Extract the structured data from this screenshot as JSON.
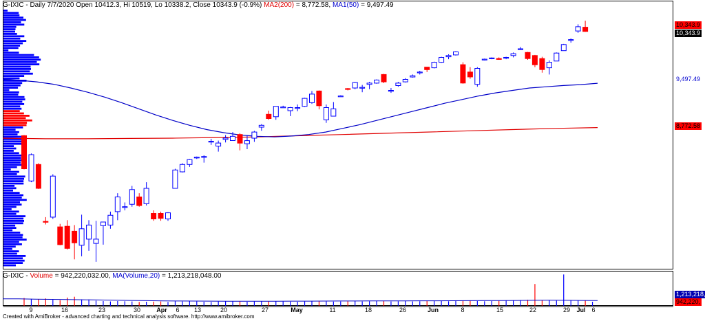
{
  "price_panel": {
    "symbol": "G-IXIC",
    "info": "Daily 7/7/2020 Open 10412.3, Hi 10519, Lo 10338.2, Close 10343.9 (-0.9%)",
    "ma200_label": "MA2(200)",
    "ma200_value": "= 8,772.58,",
    "ma50_label": "MA1(50)",
    "ma50_value": "= 9,497.49"
  },
  "volume_panel": {
    "symbol": "G-IXIC",
    "volume_label": "Volume",
    "volume_value": "= 942,220,032.00,",
    "ma_label": "MA(Volume,20)",
    "ma_value": "= 1,213,218,048.00"
  },
  "axis_tags": {
    "close_top": "10,343.9",
    "close": "10,343.9",
    "ma50": "9,497.49",
    "ma200": "8,772.58",
    "vol_ma": "1,213,218,",
    "vol": "942,220,"
  },
  "footer": "Created with AmiBroker - advanced charting and technical analysis software. http://www.amibroker.com",
  "colors": {
    "up": "#0000ff",
    "down": "#ff0000",
    "ma50": "#0000c8",
    "ma200": "#e00000",
    "volume_profile": "#0000ff"
  },
  "chart_data": {
    "type": "candlestick",
    "title": "G-IXIC Daily",
    "x_tick_labels": [
      "9",
      "16",
      "23",
      "30",
      "Apr",
      "6",
      "13",
      "20",
      "27",
      "May",
      "11",
      "18",
      "26",
      "Jun",
      "8",
      "15",
      "22",
      "29",
      "Jul",
      "6"
    ],
    "bold_tick_labels": [
      "Apr",
      "May",
      "Jun",
      "Jul"
    ],
    "ylim": [
      6500,
      10700
    ],
    "candles": [
      {
        "o": 8640,
        "h": 8650,
        "l": 8090,
        "c": 8100,
        "hollow": false
      },
      {
        "o": 7900,
        "h": 8350,
        "l": 7880,
        "c": 8330,
        "hollow": true
      },
      {
        "o": 8170,
        "h": 8190,
        "l": 7770,
        "c": 7780,
        "hollow": false
      },
      {
        "o": 7240,
        "h": 7310,
        "l": 7190,
        "c": 7230,
        "hollow": false
      },
      {
        "o": 7310,
        "h": 8010,
        "l": 7280,
        "c": 7980,
        "hollow": true
      },
      {
        "o": 7150,
        "h": 7200,
        "l": 6850,
        "c": 6860,
        "hollow": false
      },
      {
        "o": 7160,
        "h": 7260,
        "l": 6780,
        "c": 6800,
        "hollow": false
      },
      {
        "o": 7080,
        "h": 7180,
        "l": 6620,
        "c": 6890,
        "hollow": false
      },
      {
        "o": 6850,
        "h": 7350,
        "l": 6670,
        "c": 7120,
        "hollow": true
      },
      {
        "o": 6950,
        "h": 7260,
        "l": 6760,
        "c": 7180,
        "hollow": true
      },
      {
        "o": 6950,
        "h": 7250,
        "l": 6580,
        "c": 6880,
        "hollow": true
      },
      {
        "o": 7170,
        "h": 7230,
        "l": 6860,
        "c": 7230,
        "hollow": true
      },
      {
        "o": 7180,
        "h": 7400,
        "l": 7120,
        "c": 7340,
        "hollow": true
      },
      {
        "o": 7400,
        "h": 7700,
        "l": 7260,
        "c": 7640,
        "hollow": true
      },
      {
        "o": 7480,
        "h": 7550,
        "l": 7420,
        "c": 7480,
        "hollow": true
      },
      {
        "o": 7520,
        "h": 7820,
        "l": 7480,
        "c": 7760,
        "hollow": true
      },
      {
        "o": 7640,
        "h": 7700,
        "l": 7480,
        "c": 7500,
        "hollow": false
      },
      {
        "o": 7530,
        "h": 7880,
        "l": 7500,
        "c": 7780,
        "hollow": true
      },
      {
        "o": 7370,
        "h": 7420,
        "l": 7250,
        "c": 7280,
        "hollow": false
      },
      {
        "o": 7370,
        "h": 7400,
        "l": 7250,
        "c": 7290,
        "hollow": false
      },
      {
        "o": 7280,
        "h": 7390,
        "l": 7250,
        "c": 7380,
        "hollow": true
      },
      {
        "o": 7780,
        "h": 8100,
        "l": 7780,
        "c": 8080,
        "hollow": true
      },
      {
        "o": 8050,
        "h": 8190,
        "l": 8040,
        "c": 8170,
        "hollow": true
      },
      {
        "o": 8170,
        "h": 8260,
        "l": 8130,
        "c": 8250,
        "hollow": true
      },
      {
        "o": 8280,
        "h": 8300,
        "l": 8260,
        "c": 8290,
        "hollow": true
      },
      {
        "o": 8300,
        "h": 8320,
        "l": 8200,
        "c": 8300,
        "hollow": true
      },
      {
        "o": 8540,
        "h": 8590,
        "l": 8490,
        "c": 8550,
        "hollow": true
      },
      {
        "o": 8470,
        "h": 8560,
        "l": 8380,
        "c": 8520,
        "hollow": true
      },
      {
        "o": 8580,
        "h": 8650,
        "l": 8530,
        "c": 8600,
        "hollow": true
      },
      {
        "o": 8560,
        "h": 8700,
        "l": 8560,
        "c": 8630,
        "hollow": true
      },
      {
        "o": 8660,
        "h": 8680,
        "l": 8400,
        "c": 8520,
        "hollow": false
      },
      {
        "o": 8560,
        "h": 8650,
        "l": 8420,
        "c": 8510,
        "hollow": true
      },
      {
        "o": 8600,
        "h": 8720,
        "l": 8540,
        "c": 8700,
        "hollow": true
      },
      {
        "o": 8780,
        "h": 8830,
        "l": 8720,
        "c": 8810,
        "hollow": true
      },
      {
        "o": 8990,
        "h": 9050,
        "l": 8900,
        "c": 8920,
        "hollow": false
      },
      {
        "o": 8950,
        "h": 9120,
        "l": 8900,
        "c": 9120,
        "hollow": true
      },
      {
        "o": 9110,
        "h": 9130,
        "l": 9100,
        "c": 9110,
        "hollow": true
      },
      {
        "o": 9050,
        "h": 9110,
        "l": 8960,
        "c": 9100,
        "hollow": true
      },
      {
        "o": 9100,
        "h": 9150,
        "l": 9040,
        "c": 9100,
        "hollow": true
      },
      {
        "o": 9120,
        "h": 9260,
        "l": 9110,
        "c": 9250,
        "hollow": true
      },
      {
        "o": 9180,
        "h": 9370,
        "l": 9160,
        "c": 9320,
        "hollow": true
      },
      {
        "o": 9370,
        "h": 9380,
        "l": 9070,
        "c": 9130,
        "hollow": false
      },
      {
        "o": 8900,
        "h": 9150,
        "l": 8850,
        "c": 9100,
        "hollow": true
      },
      {
        "o": 8960,
        "h": 9190,
        "l": 8960,
        "c": 9080,
        "hollow": true
      },
      {
        "o": 9280,
        "h": 9300,
        "l": 9280,
        "c": 9290,
        "hollow": true
      },
      {
        "o": 9400,
        "h": 9420,
        "l": 9380,
        "c": 9410,
        "hollow": false
      },
      {
        "o": 9420,
        "h": 9520,
        "l": 9400,
        "c": 9510,
        "hollow": true
      },
      {
        "o": 9430,
        "h": 9470,
        "l": 9350,
        "c": 9420,
        "hollow": true
      },
      {
        "o": 9480,
        "h": 9520,
        "l": 9400,
        "c": 9500,
        "hollow": true
      },
      {
        "o": 9500,
        "h": 9560,
        "l": 9490,
        "c": 9550,
        "hollow": true
      },
      {
        "o": 9520,
        "h": 9650,
        "l": 9500,
        "c": 9640,
        "hollow": false
      },
      {
        "o": 9380,
        "h": 9420,
        "l": 9340,
        "c": 9380,
        "hollow": true
      },
      {
        "o": 9460,
        "h": 9520,
        "l": 9440,
        "c": 9500,
        "hollow": true
      },
      {
        "o": 9520,
        "h": 9580,
        "l": 9510,
        "c": 9560,
        "hollow": true
      },
      {
        "o": 9600,
        "h": 9640,
        "l": 9590,
        "c": 9620,
        "hollow": true
      },
      {
        "o": 9680,
        "h": 9700,
        "l": 9640,
        "c": 9680,
        "hollow": true
      },
      {
        "o": 9720,
        "h": 9760,
        "l": 9680,
        "c": 9760,
        "hollow": false
      },
      {
        "o": 9750,
        "h": 9850,
        "l": 9740,
        "c": 9840,
        "hollow": true
      },
      {
        "o": 9840,
        "h": 9930,
        "l": 9830,
        "c": 9920,
        "hollow": true
      },
      {
        "o": 9930,
        "h": 9970,
        "l": 9890,
        "c": 9950,
        "hollow": true
      },
      {
        "o": 9960,
        "h": 10020,
        "l": 9950,
        "c": 10010,
        "hollow": true
      },
      {
        "o": 9800,
        "h": 9840,
        "l": 9490,
        "c": 9500,
        "hollow": false
      },
      {
        "o": 9680,
        "h": 9760,
        "l": 9570,
        "c": 9600,
        "hollow": false
      },
      {
        "o": 9480,
        "h": 9760,
        "l": 9440,
        "c": 9740,
        "hollow": true
      },
      {
        "o": 9890,
        "h": 9900,
        "l": 9870,
        "c": 9880,
        "hollow": true
      },
      {
        "o": 9900,
        "h": 9920,
        "l": 9890,
        "c": 9910,
        "hollow": true
      },
      {
        "o": 9890,
        "h": 9920,
        "l": 9880,
        "c": 9900,
        "hollow": false
      },
      {
        "o": 9910,
        "h": 9930,
        "l": 9890,
        "c": 9920,
        "hollow": true
      },
      {
        "o": 9950,
        "h": 10000,
        "l": 9920,
        "c": 9980,
        "hollow": true
      },
      {
        "o": 10050,
        "h": 10090,
        "l": 10040,
        "c": 10060,
        "hollow": true
      },
      {
        "o": 10000,
        "h": 10010,
        "l": 9880,
        "c": 9900,
        "hollow": false
      },
      {
        "o": 9950,
        "h": 9960,
        "l": 9760,
        "c": 9800,
        "hollow": false
      },
      {
        "o": 9900,
        "h": 9930,
        "l": 9670,
        "c": 9720,
        "hollow": false
      },
      {
        "o": 9750,
        "h": 9870,
        "l": 9640,
        "c": 9840,
        "hollow": true
      },
      {
        "o": 9860,
        "h": 10000,
        "l": 9860,
        "c": 9990,
        "hollow": true
      },
      {
        "o": 10030,
        "h": 10140,
        "l": 10030,
        "c": 10130,
        "hollow": true
      },
      {
        "o": 10210,
        "h": 10230,
        "l": 10160,
        "c": 10210,
        "hollow": true
      },
      {
        "o": 10350,
        "h": 10460,
        "l": 10320,
        "c": 10420,
        "hollow": true
      },
      {
        "o": 10412.3,
        "h": 10519,
        "l": 10338.2,
        "c": 10343.9,
        "hollow": false
      }
    ],
    "ma50": [
      9560,
      9545,
      9520,
      9480,
      9420,
      9350,
      9270,
      9180,
      9080,
      8980,
      8890,
      8810,
      8740,
      8690,
      8650,
      8630,
      8620,
      8635,
      8660,
      8700,
      8760,
      8820,
      8890,
      8960,
      9030,
      9100,
      9170,
      9230,
      9290,
      9340,
      9380,
      9420,
      9440,
      9460,
      9475,
      9497.49
    ],
    "ma200": [
      8600,
      8590,
      8590,
      8595,
      8600,
      8610,
      8620,
      8640,
      8660,
      8680,
      8700,
      8720,
      8740,
      8760,
      8772.58
    ],
    "volume": [
      1800,
      1600,
      1500,
      1700,
      1400,
      1300,
      1900,
      2100,
      1500,
      1400,
      1200,
      1100,
      1000,
      1100,
      1050,
      1000,
      900,
      950,
      980,
      1000,
      900,
      1050,
      1000,
      1100,
      1000,
      950,
      900,
      1000,
      1050,
      1100,
      1000,
      950,
      1000,
      1100,
      1000,
      1050,
      1000,
      980,
      950,
      1000,
      1100,
      1050,
      1000,
      980,
      1000,
      1050,
      1100,
      1000,
      1050,
      1100,
      1150,
      1000,
      1050,
      1100,
      1000,
      1050,
      1150,
      1200,
      1100,
      1050,
      1100,
      1150,
      1200,
      1100,
      1050,
      1100,
      1150,
      1200,
      1250,
      1300,
      1400,
      5000,
      1300,
      1250,
      1200,
      7200,
      1300,
      1250,
      1200,
      942.22
    ],
    "volume_ma": [
      1600,
      1600,
      1550,
      1500,
      1450,
      1400,
      1350,
      1300,
      1250,
      1200,
      1150,
      1120,
      1100,
      1080,
      1070,
      1060,
      1060,
      1070,
      1080,
      1090,
      1100,
      1110,
      1120,
      1130,
      1140,
      1150,
      1160,
      1170,
      1180,
      1200,
      1210,
      1220,
      1250,
      1280,
      1300,
      1280,
      1250,
      1213.22
    ]
  }
}
